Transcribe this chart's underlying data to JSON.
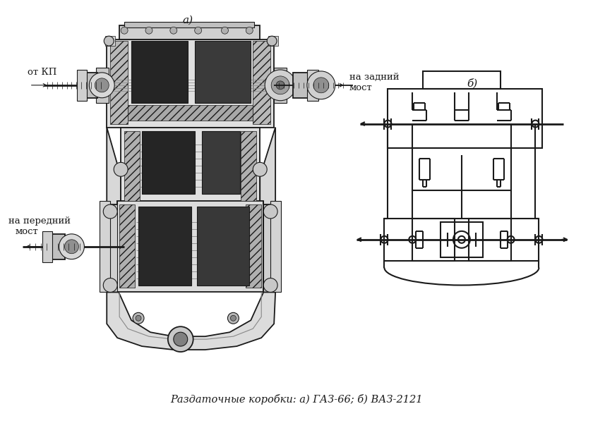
{
  "bg_color": "#ffffff",
  "line_color": "#1a1a1a",
  "title_a": "а)",
  "title_b": "б)",
  "label_from_kp": "от КП",
  "label_rear_axle_1": "на задний",
  "label_rear_axle_2": "мост",
  "label_front_axle_1": "на передний",
  "label_front_axle_2": "мост",
  "caption": "Раздаточные коробки: а) ГАЗ-66; б) ВАЗ-2121",
  "fig_width": 8.4,
  "fig_height": 6.0,
  "dpi": 100
}
